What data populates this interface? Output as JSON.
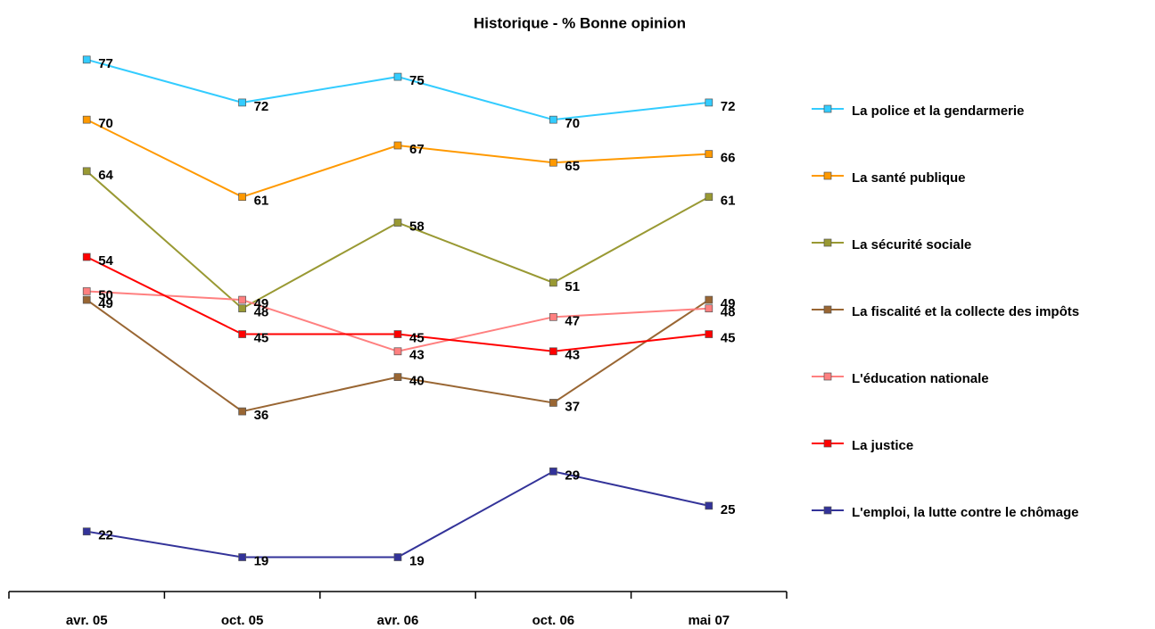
{
  "chart_data": {
    "type": "line",
    "title": "Historique - % Bonne opinion",
    "categories": [
      "avr. 05",
      "oct. 05",
      "avr. 06",
      "oct. 06",
      "mai 07"
    ],
    "ylim": [
      15,
      80
    ],
    "series": [
      {
        "name": "La police et la gendarmerie",
        "color": "#33ccff",
        "values": [
          77,
          72,
          75,
          70,
          72
        ]
      },
      {
        "name": "La santé publique",
        "color": "#ff9900",
        "values": [
          70,
          61,
          67,
          65,
          66
        ]
      },
      {
        "name": "La sécurité sociale",
        "color": "#999933",
        "values": [
          64,
          48,
          58,
          51,
          61
        ]
      },
      {
        "name": "La fiscalité et la collecte des impôts",
        "color": "#996633",
        "values": [
          49,
          36,
          40,
          37,
          49
        ]
      },
      {
        "name": "L'éducation nationale",
        "color": "#ff8080",
        "values": [
          50,
          49,
          43,
          47,
          48
        ]
      },
      {
        "name": "La justice",
        "color": "#ff0000",
        "values": [
          54,
          45,
          45,
          43,
          45
        ]
      },
      {
        "name": "L'emploi, la lutte contre le chômage",
        "color": "#333399",
        "values": [
          22,
          19,
          19,
          29,
          25
        ]
      }
    ]
  }
}
